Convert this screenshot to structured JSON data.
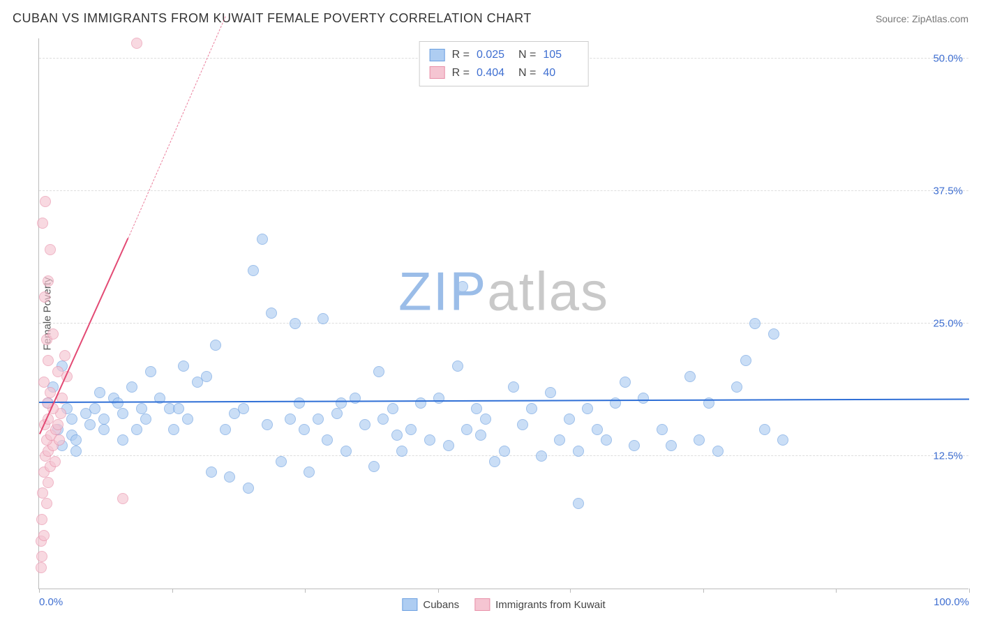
{
  "title": "CUBAN VS IMMIGRANTS FROM KUWAIT FEMALE POVERTY CORRELATION CHART",
  "source": "Source: ZipAtlas.com",
  "ylabel": "Female Poverty",
  "watermark": {
    "zip": "ZIP",
    "atlas": "atlas",
    "color_zip": "#9bbde8",
    "color_atlas": "#c9c9c9"
  },
  "chart": {
    "type": "scatter-with-regression",
    "background_color": "#ffffff",
    "grid_color": "#dddddd",
    "axis_color": "#bbbbbb",
    "xlim": [
      0,
      100
    ],
    "ylim": [
      0,
      52
    ],
    "xticks": [
      0,
      14.3,
      28.6,
      42.9,
      57.1,
      71.4,
      85.7,
      100
    ],
    "xtick_labels": {
      "0": "0.0%",
      "100": "100.0%"
    },
    "xtick_label_color": "#3f6fd1",
    "yticks": [
      12.5,
      25.0,
      37.5,
      50.0
    ],
    "ytick_labels": [
      "12.5%",
      "25.0%",
      "37.5%",
      "50.0%"
    ],
    "ytick_label_color": "#3f6fd1",
    "marker_radius": 8,
    "series": [
      {
        "name": "Cubans",
        "color_fill": "#aecdf2",
        "color_stroke": "#6b9fe0",
        "fill_opacity": 0.65,
        "R": "0.025",
        "N": "105",
        "trend": {
          "x1": 0,
          "y1": 17.5,
          "x2": 100,
          "y2": 17.8,
          "color": "#2f6fd6",
          "width": 2.5,
          "dashed_extension": false
        },
        "points": [
          [
            1.0,
            17.5
          ],
          [
            1.5,
            19.0
          ],
          [
            2.0,
            15.0
          ],
          [
            2.5,
            13.5
          ],
          [
            2.5,
            21.0
          ],
          [
            3.0,
            17.0
          ],
          [
            3.5,
            14.5
          ],
          [
            3.5,
            16.0
          ],
          [
            4.0,
            14.0
          ],
          [
            4.0,
            13.0
          ],
          [
            5.0,
            16.5
          ],
          [
            5.5,
            15.5
          ],
          [
            6.0,
            17.0
          ],
          [
            6.5,
            18.5
          ],
          [
            7.0,
            16.0
          ],
          [
            7.0,
            15.0
          ],
          [
            8.0,
            18.0
          ],
          [
            8.5,
            17.5
          ],
          [
            9.0,
            16.5
          ],
          [
            9.0,
            14.0
          ],
          [
            10.0,
            19.0
          ],
          [
            10.5,
            15.0
          ],
          [
            11.0,
            17.0
          ],
          [
            11.5,
            16.0
          ],
          [
            12.0,
            20.5
          ],
          [
            13.0,
            18.0
          ],
          [
            14.0,
            17.0
          ],
          [
            14.5,
            15.0
          ],
          [
            15.0,
            17.0
          ],
          [
            15.5,
            21.0
          ],
          [
            16.0,
            16.0
          ],
          [
            17.0,
            19.5
          ],
          [
            18.5,
            11.0
          ],
          [
            18.0,
            20.0
          ],
          [
            19.0,
            23.0
          ],
          [
            20.0,
            15.0
          ],
          [
            20.5,
            10.5
          ],
          [
            21.0,
            16.5
          ],
          [
            22.0,
            17.0
          ],
          [
            22.5,
            9.5
          ],
          [
            23.0,
            30.0
          ],
          [
            24.0,
            33.0
          ],
          [
            24.5,
            15.5
          ],
          [
            25.0,
            26.0
          ],
          [
            26.0,
            12.0
          ],
          [
            27.0,
            16.0
          ],
          [
            27.5,
            25.0
          ],
          [
            28.0,
            17.5
          ],
          [
            28.5,
            15.0
          ],
          [
            29.0,
            11.0
          ],
          [
            30.0,
            16.0
          ],
          [
            30.5,
            25.5
          ],
          [
            31.0,
            14.0
          ],
          [
            32.0,
            16.5
          ],
          [
            32.5,
            17.5
          ],
          [
            33.0,
            13.0
          ],
          [
            34.0,
            18.0
          ],
          [
            35.0,
            15.5
          ],
          [
            36.0,
            11.5
          ],
          [
            36.5,
            20.5
          ],
          [
            37.0,
            16.0
          ],
          [
            38.0,
            17.0
          ],
          [
            38.5,
            14.5
          ],
          [
            39.0,
            13.0
          ],
          [
            40.0,
            15.0
          ],
          [
            41.0,
            17.5
          ],
          [
            42.0,
            14.0
          ],
          [
            43.0,
            18.0
          ],
          [
            44.0,
            13.5
          ],
          [
            45.0,
            21.0
          ],
          [
            45.5,
            28.5
          ],
          [
            46.0,
            15.0
          ],
          [
            47.0,
            17.0
          ],
          [
            47.5,
            14.5
          ],
          [
            48.0,
            16.0
          ],
          [
            50.0,
            13.0
          ],
          [
            51.0,
            19.0
          ],
          [
            52.0,
            15.5
          ],
          [
            53.0,
            17.0
          ],
          [
            54.0,
            12.5
          ],
          [
            55.0,
            18.5
          ],
          [
            56.0,
            14.0
          ],
          [
            57.0,
            16.0
          ],
          [
            58.0,
            13.0
          ],
          [
            59.0,
            17.0
          ],
          [
            60.0,
            15.0
          ],
          [
            61.0,
            14.0
          ],
          [
            62.0,
            17.5
          ],
          [
            63.0,
            19.5
          ],
          [
            64.0,
            13.5
          ],
          [
            65.0,
            18.0
          ],
          [
            67.0,
            15.0
          ],
          [
            68.0,
            13.5
          ],
          [
            70.0,
            20.0
          ],
          [
            71.0,
            14.0
          ],
          [
            72.0,
            17.5
          ],
          [
            73.0,
            13.0
          ],
          [
            75.0,
            19.0
          ],
          [
            76.0,
            21.5
          ],
          [
            77.0,
            25.0
          ],
          [
            78.0,
            15.0
          ],
          [
            79.0,
            24.0
          ],
          [
            80.0,
            14.0
          ],
          [
            58.0,
            8.0
          ],
          [
            49.0,
            12.0
          ]
        ]
      },
      {
        "name": "Immigrants from Kuwait",
        "color_fill": "#f5c5d2",
        "color_stroke": "#e88fa8",
        "fill_opacity": 0.65,
        "R": "0.404",
        "N": "40",
        "trend": {
          "x1": 0,
          "y1": 14.5,
          "x2": 9.5,
          "y2": 33.0,
          "color": "#e34a74",
          "width": 2.5,
          "dashed_extension": true,
          "dash_x2": 20,
          "dash_y2": 54
        },
        "points": [
          [
            0.2,
            2.0
          ],
          [
            0.3,
            3.0
          ],
          [
            0.2,
            4.5
          ],
          [
            0.5,
            5.0
          ],
          [
            0.3,
            6.5
          ],
          [
            0.8,
            8.0
          ],
          [
            0.4,
            9.0
          ],
          [
            1.0,
            10.0
          ],
          [
            0.5,
            11.0
          ],
          [
            1.2,
            11.5
          ],
          [
            0.7,
            12.5
          ],
          [
            1.0,
            13.0
          ],
          [
            1.5,
            13.5
          ],
          [
            0.8,
            14.0
          ],
          [
            1.3,
            14.5
          ],
          [
            1.8,
            15.0
          ],
          [
            0.6,
            15.5
          ],
          [
            2.0,
            15.5
          ],
          [
            1.0,
            16.0
          ],
          [
            2.3,
            16.5
          ],
          [
            1.5,
            17.0
          ],
          [
            0.9,
            17.5
          ],
          [
            2.5,
            18.0
          ],
          [
            1.2,
            18.5
          ],
          [
            0.5,
            19.5
          ],
          [
            2.0,
            20.5
          ],
          [
            1.0,
            21.5
          ],
          [
            2.8,
            22.0
          ],
          [
            0.8,
            23.5
          ],
          [
            1.5,
            24.0
          ],
          [
            0.6,
            27.5
          ],
          [
            1.0,
            29.0
          ],
          [
            0.4,
            34.5
          ],
          [
            0.7,
            36.5
          ],
          [
            1.2,
            32.0
          ],
          [
            3.0,
            20.0
          ],
          [
            9.0,
            8.5
          ],
          [
            10.5,
            51.5
          ],
          [
            2.2,
            14.0
          ],
          [
            1.7,
            12.0
          ]
        ]
      }
    ],
    "stats_value_color": "#3f6fd1",
    "legend_border_color": "#cccccc"
  }
}
